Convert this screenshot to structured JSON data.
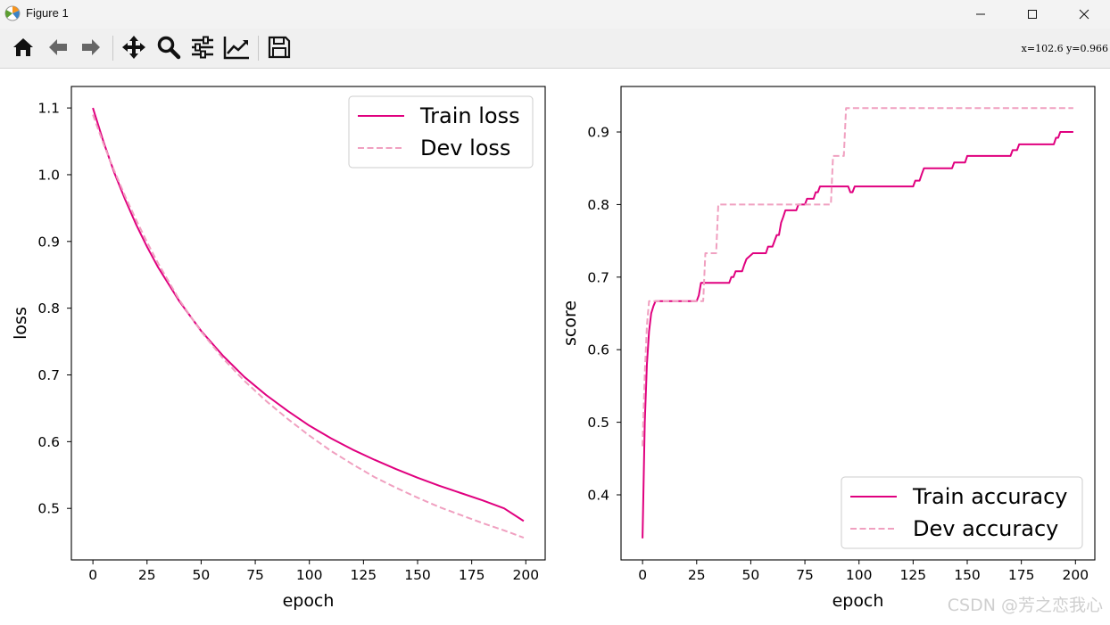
{
  "window": {
    "title": "Figure 1"
  },
  "toolbar": {
    "buttons": [
      "home-icon",
      "back-arrow-icon",
      "forward-arrow-icon",
      "pan-icon",
      "zoom-icon",
      "subplots-icon",
      "customize-icon",
      "save-icon"
    ],
    "coords_readout": "x=102.6  y=0.966"
  },
  "watermark": "CSDN @芳之恋我心",
  "colors": {
    "train": "#e0007f",
    "dev": "#f0a0c0"
  },
  "chart_data": [
    {
      "type": "line",
      "xlabel": "epoch",
      "ylabel": "loss",
      "xlim": [
        -9.95,
        208.95
      ],
      "ylim": [
        0.4228,
        1.1322
      ],
      "xticks": [
        0,
        25,
        50,
        75,
        100,
        125,
        150,
        175,
        200
      ],
      "yticks": [
        0.5,
        0.6,
        0.7,
        0.8,
        0.9,
        1.0,
        1.1
      ],
      "legend": {
        "position": "top-right",
        "entries": [
          "Train loss",
          "Dev loss"
        ]
      },
      "series": [
        {
          "name": "Train loss",
          "style": "solid",
          "x": [
            0,
            5,
            10,
            15,
            20,
            25,
            30,
            40,
            50,
            60,
            70,
            80,
            90,
            100,
            110,
            120,
            130,
            140,
            150,
            160,
            170,
            180,
            190,
            199
          ],
          "y": [
            1.1,
            1.048,
            1.002,
            0.962,
            0.925,
            0.892,
            0.862,
            0.81,
            0.766,
            0.729,
            0.697,
            0.67,
            0.646,
            0.624,
            0.605,
            0.588,
            0.573,
            0.559,
            0.546,
            0.534,
            0.523,
            0.512,
            0.5,
            0.481
          ]
        },
        {
          "name": "Dev loss",
          "style": "dashed",
          "x": [
            0,
            5,
            10,
            15,
            20,
            25,
            30,
            40,
            50,
            60,
            70,
            80,
            90,
            100,
            110,
            120,
            130,
            140,
            150,
            160,
            170,
            180,
            190,
            199
          ],
          "y": [
            1.09,
            1.045,
            1.005,
            0.967,
            0.932,
            0.899,
            0.868,
            0.812,
            0.765,
            0.725,
            0.691,
            0.661,
            0.634,
            0.609,
            0.586,
            0.566,
            0.547,
            0.531,
            0.516,
            0.502,
            0.49,
            0.478,
            0.467,
            0.456
          ]
        }
      ]
    },
    {
      "type": "line",
      "xlabel": "epoch",
      "ylabel": "score",
      "xlim": [
        -9.95,
        208.95
      ],
      "ylim": [
        0.3103,
        0.9627
      ],
      "xticks": [
        0,
        25,
        50,
        75,
        100,
        125,
        150,
        175,
        200
      ],
      "yticks": [
        0.4,
        0.5,
        0.6,
        0.7,
        0.8,
        0.9
      ],
      "legend": {
        "position": "lower-right",
        "entries": [
          "Train accuracy",
          "Dev accuracy"
        ]
      },
      "series": [
        {
          "name": "Train accuracy",
          "style": "solid",
          "x": [
            0,
            1,
            2,
            3,
            4,
            5,
            6,
            8,
            25,
            26,
            27,
            40,
            41,
            42,
            43,
            44,
            46,
            47,
            48,
            51,
            52,
            57,
            58,
            60,
            61,
            62,
            63,
            64,
            65,
            66,
            71,
            72,
            75,
            76,
            78,
            79,
            80,
            81,
            82,
            95,
            96,
            97,
            98,
            125,
            126,
            127,
            128,
            129,
            130,
            132,
            143,
            144,
            145,
            146,
            148,
            149,
            150,
            170,
            171,
            172,
            173,
            174,
            190,
            191,
            192,
            193,
            199
          ],
          "y": [
            0.34,
            0.5,
            0.58,
            0.625,
            0.65,
            0.66,
            0.667,
            0.667,
            0.667,
            0.675,
            0.692,
            0.692,
            0.7,
            0.7,
            0.708,
            0.708,
            0.708,
            0.717,
            0.725,
            0.733,
            0.733,
            0.733,
            0.742,
            0.742,
            0.75,
            0.758,
            0.758,
            0.775,
            0.783,
            0.792,
            0.792,
            0.8,
            0.8,
            0.808,
            0.808,
            0.808,
            0.817,
            0.817,
            0.825,
            0.825,
            0.817,
            0.817,
            0.825,
            0.825,
            0.833,
            0.833,
            0.833,
            0.842,
            0.85,
            0.85,
            0.85,
            0.858,
            0.858,
            0.858,
            0.858,
            0.858,
            0.867,
            0.867,
            0.875,
            0.875,
            0.875,
            0.883,
            0.883,
            0.892,
            0.892,
            0.9,
            0.9
          ]
        },
        {
          "name": "Dev accuracy",
          "style": "dashed",
          "x": [
            0,
            1,
            2,
            3,
            4,
            5,
            28,
            29,
            34,
            35,
            87,
            88,
            93,
            94,
            199
          ],
          "y": [
            0.467,
            0.567,
            0.633,
            0.667,
            0.667,
            0.667,
            0.667,
            0.733,
            0.733,
            0.8,
            0.8,
            0.867,
            0.867,
            0.933,
            0.933
          ]
        }
      ]
    }
  ]
}
